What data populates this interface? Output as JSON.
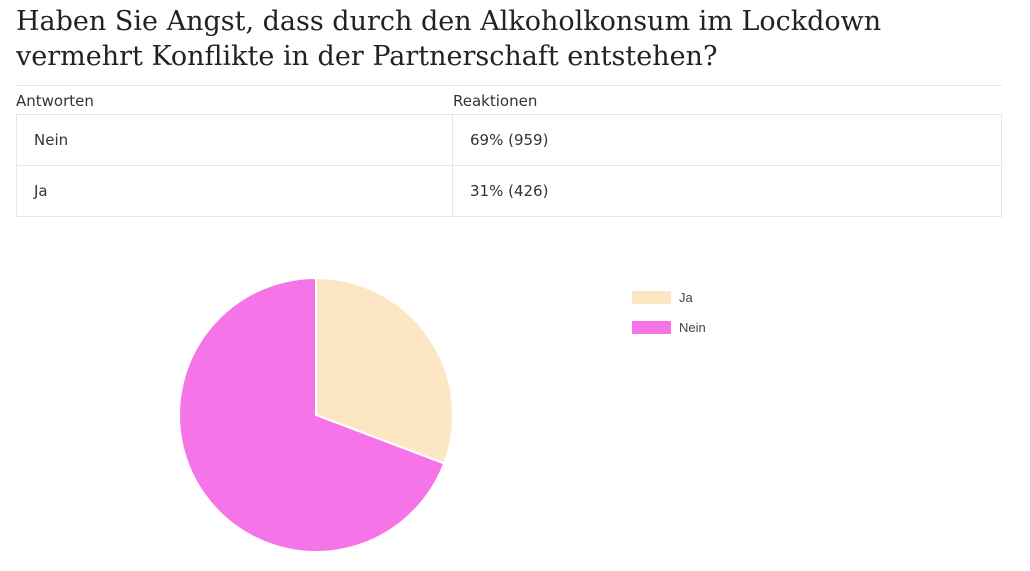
{
  "question": "Haben Sie Angst, dass durch den Alkoholkonsum im Lockdown vermehrt Konflikte in der Partnerschaft entstehen?",
  "table": {
    "header_answers": "Antworten",
    "header_reactions": "Reaktionen",
    "rows": [
      {
        "answer": "Nein",
        "reaction": "69% (959)"
      },
      {
        "answer": "Ja",
        "reaction": "31% (426)"
      }
    ]
  },
  "chart_data": {
    "type": "pie",
    "title": "",
    "categories": [
      "Ja",
      "Nein"
    ],
    "values": [
      426,
      959
    ],
    "percentages": [
      31,
      69
    ],
    "colors": [
      "#fce6c4",
      "#f575e9"
    ],
    "legend_position": "right",
    "start_angle_deg": 0,
    "direction": "clockwise"
  }
}
